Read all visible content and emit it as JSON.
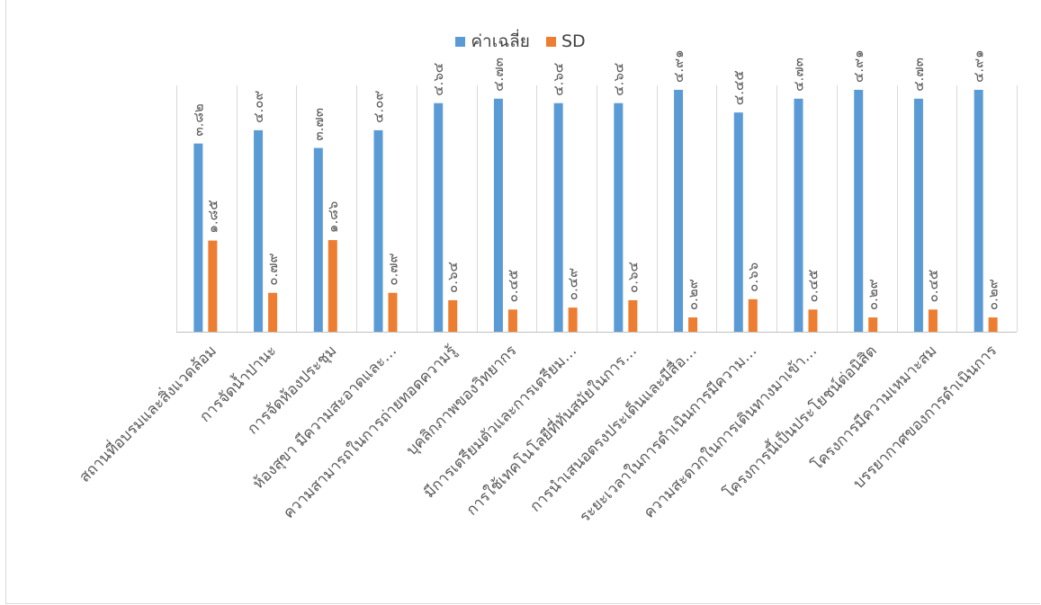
{
  "chart_data": {
    "type": "bar",
    "categories": [
      "สถานที่อบรมและสิ่งแวดล้อม",
      "การจัดน้ำปานะ",
      "การจัดห้องประชุม",
      "ห้องสุขา   มีความสะอาดและ…",
      "ความสามารถในการถ่ายทอดความรู้",
      "บุคลิกภาพของวิทยากร",
      "มีการเตรียมตัวและการเตรียม…",
      "การใช้เทคโนโลยีที่ทันสมัยในการ…",
      "การนำเสนอตรงประเด็นและมีสื่อ…",
      "ระยะเวลาในการดำเนินการมีความ…",
      "ความสะดวกในการเดินทางมาเข้า…",
      "โครงการนี้เป็นประโยชน์ต่อนิสิต",
      "โครงการมีความเหมาะสม",
      "บรรยากาศของการดำเนินการ"
    ],
    "series": [
      {
        "name": "ค่าเฉลี่ย",
        "color": "#5B9BD5",
        "values": [
          3.82,
          4.09,
          3.73,
          4.09,
          4.64,
          4.73,
          4.64,
          4.64,
          4.91,
          4.45,
          4.73,
          4.91,
          4.73,
          4.91
        ],
        "labels": [
          "๓.๘๒",
          "๔.๐๙",
          "๓.๗๓",
          "๔.๐๙",
          "๔.๖๔",
          "๔.๗๓",
          "๔.๖๔",
          "๔.๖๔",
          "๔.๙๑",
          "๔.๔๕",
          "๔.๗๓",
          "๔.๙๑",
          "๔.๗๓",
          "๔.๙๑"
        ]
      },
      {
        "name": "SD",
        "color": "#ED7D31",
        "values": [
          1.85,
          0.79,
          1.86,
          0.79,
          0.64,
          0.45,
          0.49,
          0.64,
          0.29,
          0.66,
          0.45,
          0.29,
          0.45,
          0.29
        ],
        "labels": [
          "๑.๘๕",
          "๐.๗๙",
          "๑.๘๖",
          "๐.๗๙",
          "๐.๖๔",
          "๐.๔๕",
          "๐.๔๙",
          "๐.๖๔",
          "๐.๒๙",
          "๐.๖๖",
          "๐.๔๕",
          "๐.๒๙",
          "๐.๔๕",
          "๐.๒๙"
        ]
      }
    ],
    "ylim": [
      0,
      5
    ],
    "gridlines": "vertical category separators",
    "legend_position": "top"
  }
}
